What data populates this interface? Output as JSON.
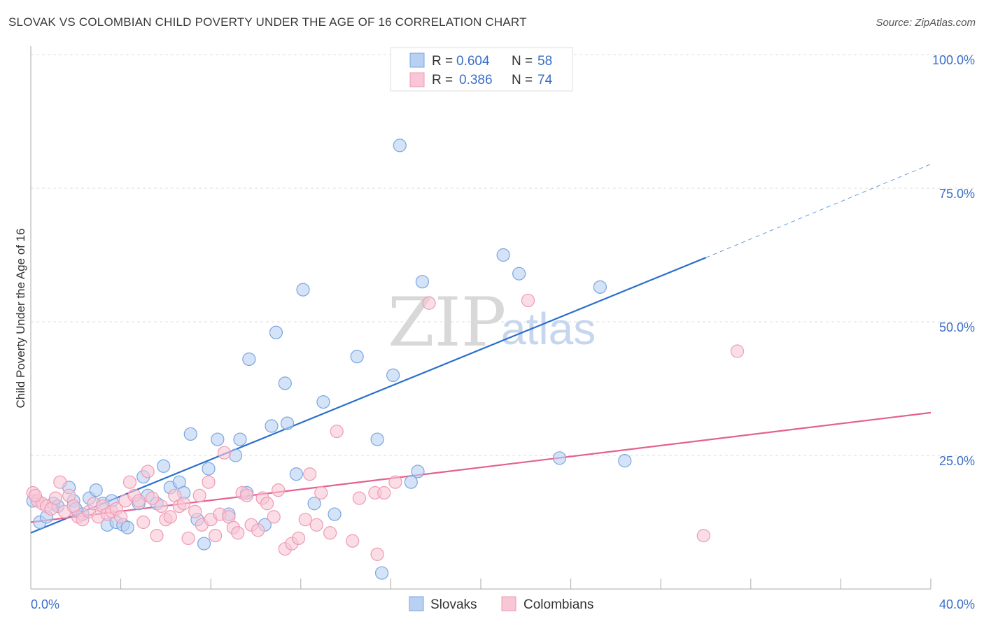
{
  "header": {
    "title": "SLOVAK VS COLOMBIAN CHILD POVERTY UNDER THE AGE OF 16 CORRELATION CHART",
    "source": "Source: ZipAtlas.com"
  },
  "watermark": {
    "zip": "ZIP",
    "atlas": "atlas"
  },
  "legend": {
    "rows": [
      {
        "r_label": "R =",
        "r_value": "0.604",
        "n_label": "N =",
        "n_value": "58",
        "color": "#8fb5ea"
      },
      {
        "r_label": "R =",
        "r_value": "0.386",
        "n_label": "N =",
        "n_value": "74",
        "color": "#f4a8c0"
      }
    ]
  },
  "bottom_legend": [
    "Slovaks",
    "Colombians"
  ],
  "colors": {
    "slovak_fill": "#b8d0f2",
    "slovak_stroke": "#7aa6e0",
    "slovak_line": "#2a6fcc",
    "colombian_fill": "#f9c6d5",
    "colombian_stroke": "#ef9ab5",
    "colombian_line": "#e4608f",
    "axis_tick": "#3b6ec9",
    "grid": "#dddddd"
  },
  "chart_data": {
    "type": "scatter",
    "title": "SLOVAK VS COLOMBIAN CHILD POVERTY UNDER THE AGE OF 16 CORRELATION CHART",
    "xlabel": "",
    "ylabel": "Child Poverty Under the Age of 16",
    "xlim": [
      0,
      40
    ],
    "ylim": [
      0,
      100
    ],
    "x_tick_labels": [
      "0.0%",
      "40.0%"
    ],
    "y_ticks": [
      25,
      50,
      75,
      100
    ],
    "y_tick_labels": [
      "25.0%",
      "50.0%",
      "75.0%",
      "100.0%"
    ],
    "grid": true,
    "legend_position": "top-center",
    "series": [
      {
        "name": "Slovaks",
        "r": 0.604,
        "n": 58,
        "trend": {
          "x0": 0,
          "y0": 10.5,
          "x1": 30,
          "y1": 62,
          "dashed_to_x": 40,
          "dashed_to_y": 79.5
        },
        "points": [
          [
            0.1,
            16.5
          ],
          [
            0.4,
            12.5
          ],
          [
            0.7,
            13.5
          ],
          [
            1.0,
            16.0
          ],
          [
            1.2,
            15.5
          ],
          [
            1.7,
            19.0
          ],
          [
            1.9,
            16.5
          ],
          [
            2.0,
            15.0
          ],
          [
            2.3,
            14.0
          ],
          [
            2.6,
            17.0
          ],
          [
            2.9,
            18.5
          ],
          [
            3.2,
            16.0
          ],
          [
            3.4,
            12.0
          ],
          [
            3.6,
            16.5
          ],
          [
            3.8,
            12.5
          ],
          [
            4.1,
            12.0
          ],
          [
            4.3,
            11.5
          ],
          [
            4.8,
            16.0
          ],
          [
            5.0,
            21.0
          ],
          [
            5.2,
            17.5
          ],
          [
            5.6,
            16.0
          ],
          [
            5.9,
            23.0
          ],
          [
            6.2,
            19.0
          ],
          [
            6.6,
            20.0
          ],
          [
            6.8,
            18.0
          ],
          [
            7.1,
            29.0
          ],
          [
            7.4,
            13.0
          ],
          [
            7.7,
            8.5
          ],
          [
            7.9,
            22.5
          ],
          [
            8.3,
            28.0
          ],
          [
            8.8,
            14.0
          ],
          [
            9.1,
            25.0
          ],
          [
            9.3,
            28.0
          ],
          [
            9.6,
            18.0
          ],
          [
            9.7,
            43.0
          ],
          [
            10.4,
            12.0
          ],
          [
            10.7,
            30.5
          ],
          [
            10.9,
            48.0
          ],
          [
            11.3,
            38.5
          ],
          [
            11.4,
            31.0
          ],
          [
            11.8,
            21.5
          ],
          [
            12.1,
            56.0
          ],
          [
            12.6,
            16.0
          ],
          [
            13.0,
            35.0
          ],
          [
            13.5,
            14.0
          ],
          [
            14.5,
            43.5
          ],
          [
            15.4,
            28.0
          ],
          [
            15.6,
            3.0
          ],
          [
            16.1,
            40.0
          ],
          [
            16.4,
            83.0
          ],
          [
            16.9,
            20.0
          ],
          [
            17.4,
            57.5
          ],
          [
            17.2,
            22.0
          ],
          [
            21.0,
            62.5
          ],
          [
            21.7,
            59.0
          ],
          [
            23.5,
            24.5
          ],
          [
            25.3,
            56.5
          ],
          [
            26.4,
            24.0
          ]
        ]
      },
      {
        "name": "Colombians",
        "r": 0.386,
        "n": 74,
        "trend": {
          "x0": 0,
          "y0": 12.5,
          "x1": 40,
          "y1": 33.0
        },
        "points": [
          [
            0.1,
            18.0
          ],
          [
            0.3,
            16.5
          ],
          [
            0.5,
            16.0
          ],
          [
            0.7,
            15.5
          ],
          [
            0.9,
            15.0
          ],
          [
            1.1,
            17.0
          ],
          [
            1.3,
            20.0
          ],
          [
            1.5,
            14.5
          ],
          [
            1.7,
            17.5
          ],
          [
            1.9,
            15.5
          ],
          [
            2.1,
            13.5
          ],
          [
            2.3,
            13.0
          ],
          [
            2.6,
            14.5
          ],
          [
            2.8,
            16.0
          ],
          [
            3.0,
            13.5
          ],
          [
            3.2,
            15.5
          ],
          [
            3.4,
            14.0
          ],
          [
            3.6,
            14.5
          ],
          [
            3.8,
            15.0
          ],
          [
            4.0,
            13.5
          ],
          [
            4.2,
            16.5
          ],
          [
            4.4,
            20.0
          ],
          [
            4.6,
            17.5
          ],
          [
            4.8,
            16.5
          ],
          [
            5.0,
            12.5
          ],
          [
            5.2,
            22.0
          ],
          [
            5.4,
            17.0
          ],
          [
            5.6,
            10.0
          ],
          [
            5.8,
            15.5
          ],
          [
            6.0,
            13.0
          ],
          [
            6.2,
            13.5
          ],
          [
            6.4,
            17.5
          ],
          [
            6.6,
            15.5
          ],
          [
            6.8,
            16.0
          ],
          [
            7.0,
            9.5
          ],
          [
            7.3,
            14.5
          ],
          [
            7.5,
            17.5
          ],
          [
            7.6,
            12.0
          ],
          [
            7.9,
            20.0
          ],
          [
            8.0,
            13.0
          ],
          [
            8.2,
            10.0
          ],
          [
            8.4,
            14.0
          ],
          [
            8.6,
            25.5
          ],
          [
            8.8,
            13.5
          ],
          [
            9.0,
            11.5
          ],
          [
            9.2,
            10.5
          ],
          [
            9.4,
            18.0
          ],
          [
            9.6,
            17.5
          ],
          [
            9.8,
            12.0
          ],
          [
            10.1,
            11.0
          ],
          [
            10.3,
            17.0
          ],
          [
            10.5,
            16.0
          ],
          [
            10.8,
            13.5
          ],
          [
            11.0,
            18.5
          ],
          [
            11.3,
            7.5
          ],
          [
            11.6,
            8.5
          ],
          [
            11.9,
            9.5
          ],
          [
            12.2,
            13.0
          ],
          [
            12.4,
            21.5
          ],
          [
            12.7,
            12.0
          ],
          [
            12.9,
            18.0
          ],
          [
            13.3,
            10.5
          ],
          [
            13.6,
            29.5
          ],
          [
            14.3,
            9.0
          ],
          [
            14.6,
            17.0
          ],
          [
            15.4,
            6.5
          ],
          [
            15.3,
            18.0
          ],
          [
            15.7,
            18.0
          ],
          [
            16.2,
            20.0
          ],
          [
            17.7,
            53.5
          ],
          [
            22.1,
            54.0
          ],
          [
            29.9,
            10.0
          ],
          [
            31.4,
            44.5
          ],
          [
            0.2,
            17.5
          ]
        ]
      }
    ]
  }
}
